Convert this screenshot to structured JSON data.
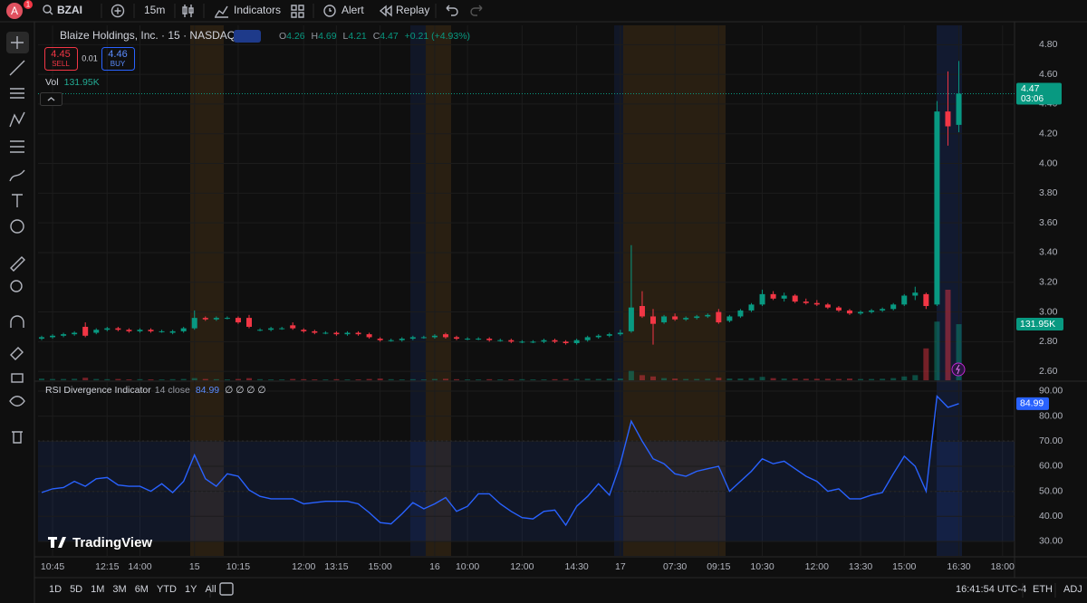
{
  "toolbar": {
    "avatar": "A",
    "badge": "1",
    "symbol": "BZAI",
    "interval": "15m",
    "indicators": "Indicators",
    "alert": "Alert",
    "replay": "Replay"
  },
  "legend": {
    "title": "Blaize Holdings, Inc. · 15 · NASDAQ",
    "o": "O",
    "open": "4.26",
    "h": "H",
    "high": "4.69",
    "l": "L",
    "low": "4.21",
    "c": "C",
    "close": "4.47",
    "change": "+0.21 (+4.93%)",
    "sell_price": "4.45",
    "sell": "SELL",
    "spread": "0.01",
    "buy_price": "4.46",
    "buy": "BUY"
  },
  "chart_data": [
    {
      "type": "candlestick",
      "up_color": "#089981",
      "down_color": "#f23645",
      "open": [
        2.82,
        2.83,
        2.84,
        2.85,
        2.9,
        2.86,
        2.88,
        2.89,
        2.88,
        2.87,
        2.88,
        2.87,
        2.86,
        2.87,
        2.89,
        2.96,
        2.95,
        2.96,
        2.96,
        2.96,
        2.88,
        2.88,
        2.89,
        2.91,
        2.88,
        2.87,
        2.86,
        2.86,
        2.85,
        2.86,
        2.85,
        2.82,
        2.81,
        2.81,
        2.82,
        2.83,
        2.83,
        2.85,
        2.83,
        2.82,
        2.82,
        2.82,
        2.81,
        2.81,
        2.8,
        2.8,
        2.8,
        2.81,
        2.8,
        2.79,
        2.81,
        2.83,
        2.84,
        2.85,
        2.87,
        3.04,
        2.97,
        2.93,
        2.97,
        2.95,
        2.96,
        2.97,
        3.0,
        2.94,
        2.97,
        3.01,
        3.05,
        3.12,
        3.09,
        3.11,
        3.07,
        3.06,
        3.05,
        3.03,
        3.01,
        2.99,
        3.0,
        3.01,
        3.02,
        3.05,
        3.11,
        3.12,
        3.05,
        4.35,
        4.26
      ],
      "high": [
        2.84,
        2.85,
        2.86,
        2.87,
        2.93,
        2.89,
        2.9,
        2.9,
        2.89,
        2.89,
        2.89,
        2.88,
        2.88,
        2.9,
        3.01,
        2.97,
        2.97,
        2.97,
        2.97,
        2.98,
        2.89,
        2.9,
        2.9,
        2.93,
        2.89,
        2.88,
        2.87,
        2.87,
        2.87,
        2.87,
        2.86,
        2.83,
        2.82,
        2.83,
        2.84,
        2.84,
        2.85,
        2.86,
        2.84,
        2.83,
        2.83,
        2.83,
        2.82,
        2.82,
        2.81,
        2.81,
        2.82,
        2.82,
        2.81,
        2.82,
        2.84,
        2.85,
        2.86,
        2.88,
        3.45,
        3.14,
        3.02,
        2.98,
        2.99,
        2.97,
        2.98,
        2.99,
        3.02,
        2.98,
        3.02,
        3.06,
        3.15,
        3.14,
        3.13,
        3.12,
        3.09,
        3.08,
        3.06,
        3.04,
        3.02,
        3.01,
        3.02,
        3.03,
        3.06,
        3.12,
        3.17,
        3.13,
        4.42,
        4.62,
        4.69
      ],
      "low": [
        2.81,
        2.82,
        2.83,
        2.84,
        2.83,
        2.85,
        2.87,
        2.87,
        2.86,
        2.86,
        2.86,
        2.86,
        2.85,
        2.86,
        2.88,
        2.94,
        2.94,
        2.95,
        2.92,
        2.89,
        2.87,
        2.87,
        2.88,
        2.88,
        2.86,
        2.85,
        2.85,
        2.84,
        2.84,
        2.84,
        2.82,
        2.8,
        2.8,
        2.8,
        2.81,
        2.82,
        2.82,
        2.82,
        2.81,
        2.81,
        2.81,
        2.8,
        2.8,
        2.79,
        2.79,
        2.79,
        2.79,
        2.79,
        2.78,
        2.78,
        2.8,
        2.82,
        2.83,
        2.84,
        2.86,
        2.96,
        2.78,
        2.92,
        2.94,
        2.94,
        2.95,
        2.96,
        2.92,
        2.93,
        2.96,
        3.0,
        3.04,
        3.08,
        3.07,
        3.06,
        3.05,
        3.04,
        3.02,
        3.0,
        2.98,
        2.98,
        2.99,
        3.0,
        3.01,
        3.04,
        3.08,
        3.02,
        3.04,
        4.12,
        4.21
      ],
      "close": [
        2.83,
        2.84,
        2.85,
        2.86,
        2.84,
        2.88,
        2.89,
        2.88,
        2.87,
        2.88,
        2.87,
        2.87,
        2.87,
        2.89,
        2.96,
        2.95,
        2.96,
        2.96,
        2.93,
        2.9,
        2.88,
        2.89,
        2.89,
        2.89,
        2.87,
        2.86,
        2.86,
        2.85,
        2.86,
        2.85,
        2.83,
        2.81,
        2.81,
        2.82,
        2.83,
        2.83,
        2.84,
        2.83,
        2.82,
        2.82,
        2.82,
        2.81,
        2.81,
        2.8,
        2.8,
        2.8,
        2.81,
        2.8,
        2.79,
        2.81,
        2.83,
        2.84,
        2.85,
        2.86,
        3.03,
        2.97,
        2.92,
        2.97,
        2.95,
        2.96,
        2.97,
        2.98,
        2.93,
        2.97,
        3.01,
        3.05,
        3.12,
        3.09,
        3.11,
        3.07,
        3.06,
        3.05,
        3.03,
        3.01,
        2.99,
        3.0,
        3.01,
        3.02,
        3.05,
        3.11,
        3.13,
        3.04,
        4.35,
        4.25,
        4.47
      ],
      "volume": {
        "name": "Vol",
        "last_label": "131.95K",
        "values": [
          4000,
          3000,
          3000,
          3500,
          6000,
          3000,
          2500,
          3000,
          2000,
          2500,
          2000,
          2000,
          2500,
          3000,
          5000,
          3000,
          2500,
          2000,
          3000,
          5000,
          2500,
          2000,
          2000,
          3000,
          2500,
          2000,
          2000,
          2500,
          2000,
          2000,
          3000,
          4000,
          2500,
          2000,
          2500,
          2000,
          3000,
          3500,
          2500,
          2000,
          2000,
          2500,
          2000,
          2000,
          2500,
          2000,
          2000,
          2500,
          3000,
          3000,
          3500,
          3000,
          3500,
          4000,
          22000,
          12000,
          9000,
          5000,
          4000,
          3000,
          3000,
          3500,
          6000,
          4000,
          4000,
          5000,
          8000,
          5000,
          4000,
          4000,
          3500,
          3500,
          3500,
          3000,
          4000,
          3000,
          3000,
          3500,
          5000,
          9000,
          12000,
          75000,
          138000,
          213000,
          131950
        ]
      },
      "countdown": "03:06",
      "xlim": [
        -0.33,
        89.1
      ],
      "ylim": [
        2.54,
        4.93
      ],
      "yticks": [
        {
          "value": 2.6,
          "label": "2.60"
        },
        {
          "value": 2.8,
          "label": "2.80"
        },
        {
          "value": 3.0,
          "label": "3.00"
        },
        {
          "value": 3.2,
          "label": "3.20"
        },
        {
          "value": 3.4,
          "label": "3.40"
        },
        {
          "value": 3.6,
          "label": "3.60"
        },
        {
          "value": 3.8,
          "label": "3.80"
        },
        {
          "value": 4.0,
          "label": "4.00"
        },
        {
          "value": 4.2,
          "label": "4.20"
        },
        {
          "value": 4.4,
          "label": "4.40"
        },
        {
          "value": 4.6,
          "label": "4.60"
        },
        {
          "value": 4.8,
          "label": "4.80"
        }
      ],
      "grid": true
    },
    {
      "type": "line",
      "title": "RSI Divergence Indicator",
      "subtitle": "14 close",
      "flags": "∅ ∅ ∅ ∅",
      "color": "#2962ff",
      "values": [
        49.5,
        51,
        51.5,
        54,
        52,
        55,
        55.5,
        52.5,
        52,
        52,
        50,
        53,
        49.5,
        54,
        64.5,
        55,
        52,
        57,
        56,
        50.5,
        48,
        47,
        47,
        47,
        45,
        45.5,
        46,
        46,
        46,
        45,
        41.5,
        37.5,
        37,
        41,
        45.5,
        43,
        45,
        47.5,
        42,
        44,
        49,
        49,
        45,
        42,
        39.5,
        39,
        42,
        42.5,
        36.5,
        44,
        48,
        53,
        48.5,
        61,
        78,
        70,
        63,
        61,
        57,
        56,
        58,
        59,
        60,
        50,
        54,
        58,
        63,
        61,
        62,
        59,
        56,
        54,
        50,
        51,
        47,
        47,
        48.5,
        49.5,
        57,
        64,
        60,
        50,
        88,
        83.5,
        84.99
      ],
      "band": [
        30,
        70
      ],
      "levels": [
        30,
        50,
        70
      ],
      "xlim": [
        -0.33,
        89.1
      ],
      "xticks": [
        {
          "value": 1,
          "label": "10:45"
        },
        {
          "value": 6,
          "label": "12:15"
        },
        {
          "value": 9,
          "label": "14:00"
        },
        {
          "value": 14,
          "label": "15"
        },
        {
          "value": 18,
          "label": "10:15"
        },
        {
          "value": 24,
          "label": "12:00"
        },
        {
          "value": 27,
          "label": "13:15"
        },
        {
          "value": 31,
          "label": "15:00"
        },
        {
          "value": 36,
          "label": "16"
        },
        {
          "value": 39,
          "label": "10:00"
        },
        {
          "value": 44,
          "label": "12:00"
        },
        {
          "value": 49,
          "label": "14:30"
        },
        {
          "value": 53,
          "label": "17"
        },
        {
          "value": 58,
          "label": "07:30"
        },
        {
          "value": 62,
          "label": "09:15"
        },
        {
          "value": 66,
          "label": "10:30"
        },
        {
          "value": 71,
          "label": "12:00"
        },
        {
          "value": 75,
          "label": "13:30"
        },
        {
          "value": 79,
          "label": "15:00"
        },
        {
          "value": 84,
          "label": "16:30"
        },
        {
          "value": 88,
          "label": "18:00"
        }
      ],
      "ylim": [
        24.2,
        93.6
      ],
      "yticks": [
        {
          "value": 30,
          "label": "30.00"
        },
        {
          "value": 40,
          "label": "40.00"
        },
        {
          "value": 50,
          "label": "50.00"
        },
        {
          "value": 60,
          "label": "60.00"
        },
        {
          "value": 70,
          "label": "70.00"
        },
        {
          "value": 80,
          "label": "80.00"
        },
        {
          "value": 90,
          "label": "90.00"
        }
      ],
      "grid": true
    }
  ],
  "watermark": "TradingView",
  "bottom_bar": {
    "ranges": [
      "1D",
      "5D",
      "1M",
      "3M",
      "6M",
      "YTD",
      "1Y",
      "All"
    ],
    "clock": "16:41:54 UTC-4",
    "eth": "ETH",
    "adj": "ADJ"
  }
}
